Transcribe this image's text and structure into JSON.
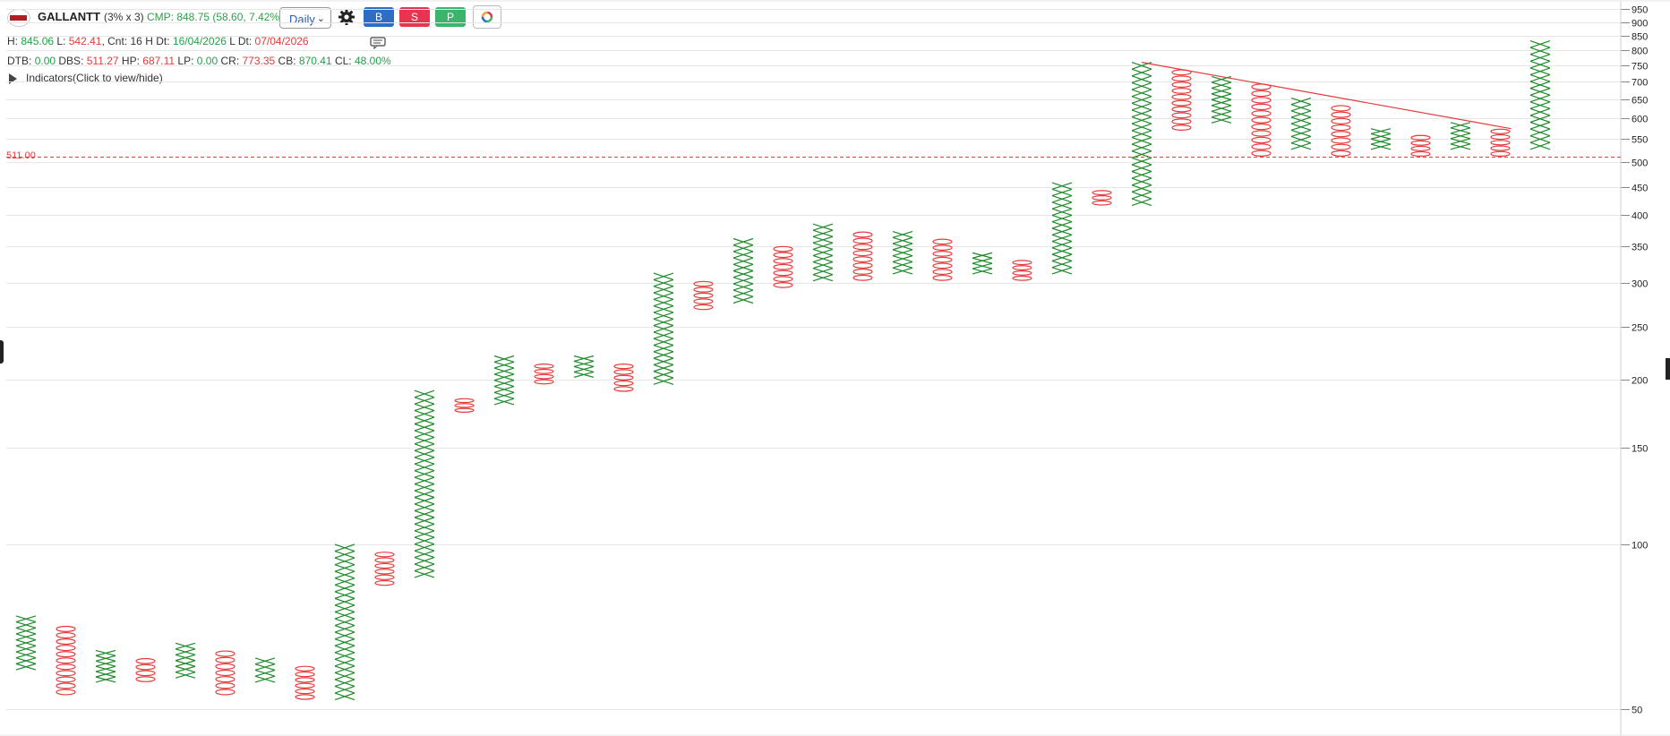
{
  "toolbar": {
    "symbol": "GALLANTT",
    "box_setting": "(3% x 3)",
    "cmp": "CMP: 848.75 (58.60, 7.42%)",
    "interval": "Daily",
    "buy_label": "B",
    "sell_label": "S",
    "p_label": "P",
    "colors": {
      "buy": "#2f6dc4",
      "sell": "#e8344e",
      "p": "#3db36b"
    },
    "icons": [
      "settings-gear-icon",
      "color-wheel-icon",
      "comment-icon"
    ]
  },
  "stats_line1": {
    "h_label": "H:",
    "h_value": "845.06",
    "l_label": "L:",
    "l_value": "542.41",
    "cnt_label": "Cnt:",
    "cnt_value": "16",
    "hdt_label": "H Dt:",
    "hdt_value": "16/04/2026",
    "ldt_label": "L Dt:",
    "ldt_value": "07/04/2026"
  },
  "stats_line2": {
    "dtb_label": "DTB:",
    "dtb_value": "0.00",
    "dbs_label": "DBS:",
    "dbs_value": "511.27",
    "hp_label": "HP:",
    "hp_value": "687.11",
    "lp_label": "LP:",
    "lp_value": "0.00",
    "cr_label": "CR:",
    "cr_value": "773.35",
    "cb_label": "CB:",
    "cb_value": "870.41",
    "cl_label": "CL:",
    "cl_value": "48.00%"
  },
  "indicators_label": "Indicators(Click to view/hide)",
  "chart_data": {
    "type": "point-and-figure",
    "box_size_pct": 3,
    "reversal": 3,
    "y_scale": "log",
    "y_ticks": [
      50,
      100,
      150,
      200,
      250,
      300,
      350,
      400,
      450,
      500,
      550,
      600,
      650,
      700,
      750,
      800,
      850,
      900,
      950
    ],
    "gridlines": true,
    "horizontal_level": {
      "value": 511.0,
      "label": "511.00",
      "color": "#e53a3a",
      "style": "dashed"
    },
    "trendline": {
      "from": [
        28,
        760
      ],
      "to": [
        37,
        575
      ],
      "color": "#e53a3a"
    },
    "colors": {
      "x": "#1f8a2a",
      "o": "#e53a3a"
    },
    "columns": [
      {
        "type": "X",
        "low": 59,
        "high": 74
      },
      {
        "type": "O",
        "low": 53,
        "high": 71
      },
      {
        "type": "X",
        "low": 56,
        "high": 64
      },
      {
        "type": "O",
        "low": 56,
        "high": 62
      },
      {
        "type": "X",
        "low": 57,
        "high": 66
      },
      {
        "type": "O",
        "low": 53,
        "high": 64
      },
      {
        "type": "X",
        "low": 56,
        "high": 62
      },
      {
        "type": "O",
        "low": 52,
        "high": 60
      },
      {
        "type": "X",
        "low": 52,
        "high": 100
      },
      {
        "type": "O",
        "low": 84,
        "high": 97
      },
      {
        "type": "X",
        "low": 87,
        "high": 191
      },
      {
        "type": "O",
        "low": 174,
        "high": 185
      },
      {
        "type": "X",
        "low": 180,
        "high": 221
      },
      {
        "type": "O",
        "low": 196,
        "high": 214
      },
      {
        "type": "X",
        "low": 202,
        "high": 221
      },
      {
        "type": "O",
        "low": 190,
        "high": 214
      },
      {
        "type": "X",
        "low": 196,
        "high": 313
      },
      {
        "type": "O",
        "low": 268,
        "high": 303
      },
      {
        "type": "X",
        "low": 276,
        "high": 362
      },
      {
        "type": "O",
        "low": 294,
        "high": 351
      },
      {
        "type": "X",
        "low": 303,
        "high": 385
      },
      {
        "type": "O",
        "low": 303,
        "high": 373
      },
      {
        "type": "X",
        "low": 312,
        "high": 373
      },
      {
        "type": "O",
        "low": 303,
        "high": 362
      },
      {
        "type": "X",
        "low": 312,
        "high": 341
      },
      {
        "type": "O",
        "low": 303,
        "high": 331
      },
      {
        "type": "X",
        "low": 312,
        "high": 458
      },
      {
        "type": "O",
        "low": 416,
        "high": 444
      },
      {
        "type": "X",
        "low": 416,
        "high": 760
      },
      {
        "type": "O",
        "low": 570,
        "high": 738
      },
      {
        "type": "X",
        "low": 589,
        "high": 716
      },
      {
        "type": "O",
        "low": 511,
        "high": 695
      },
      {
        "type": "X",
        "low": 527,
        "high": 654
      },
      {
        "type": "O",
        "low": 511,
        "high": 635
      },
      {
        "type": "X",
        "low": 527,
        "high": 575
      },
      {
        "type": "O",
        "low": 511,
        "high": 560
      },
      {
        "type": "X",
        "low": 527,
        "high": 590
      },
      {
        "type": "O",
        "low": 511,
        "high": 575
      },
      {
        "type": "X",
        "low": 527,
        "high": 832
      }
    ]
  }
}
